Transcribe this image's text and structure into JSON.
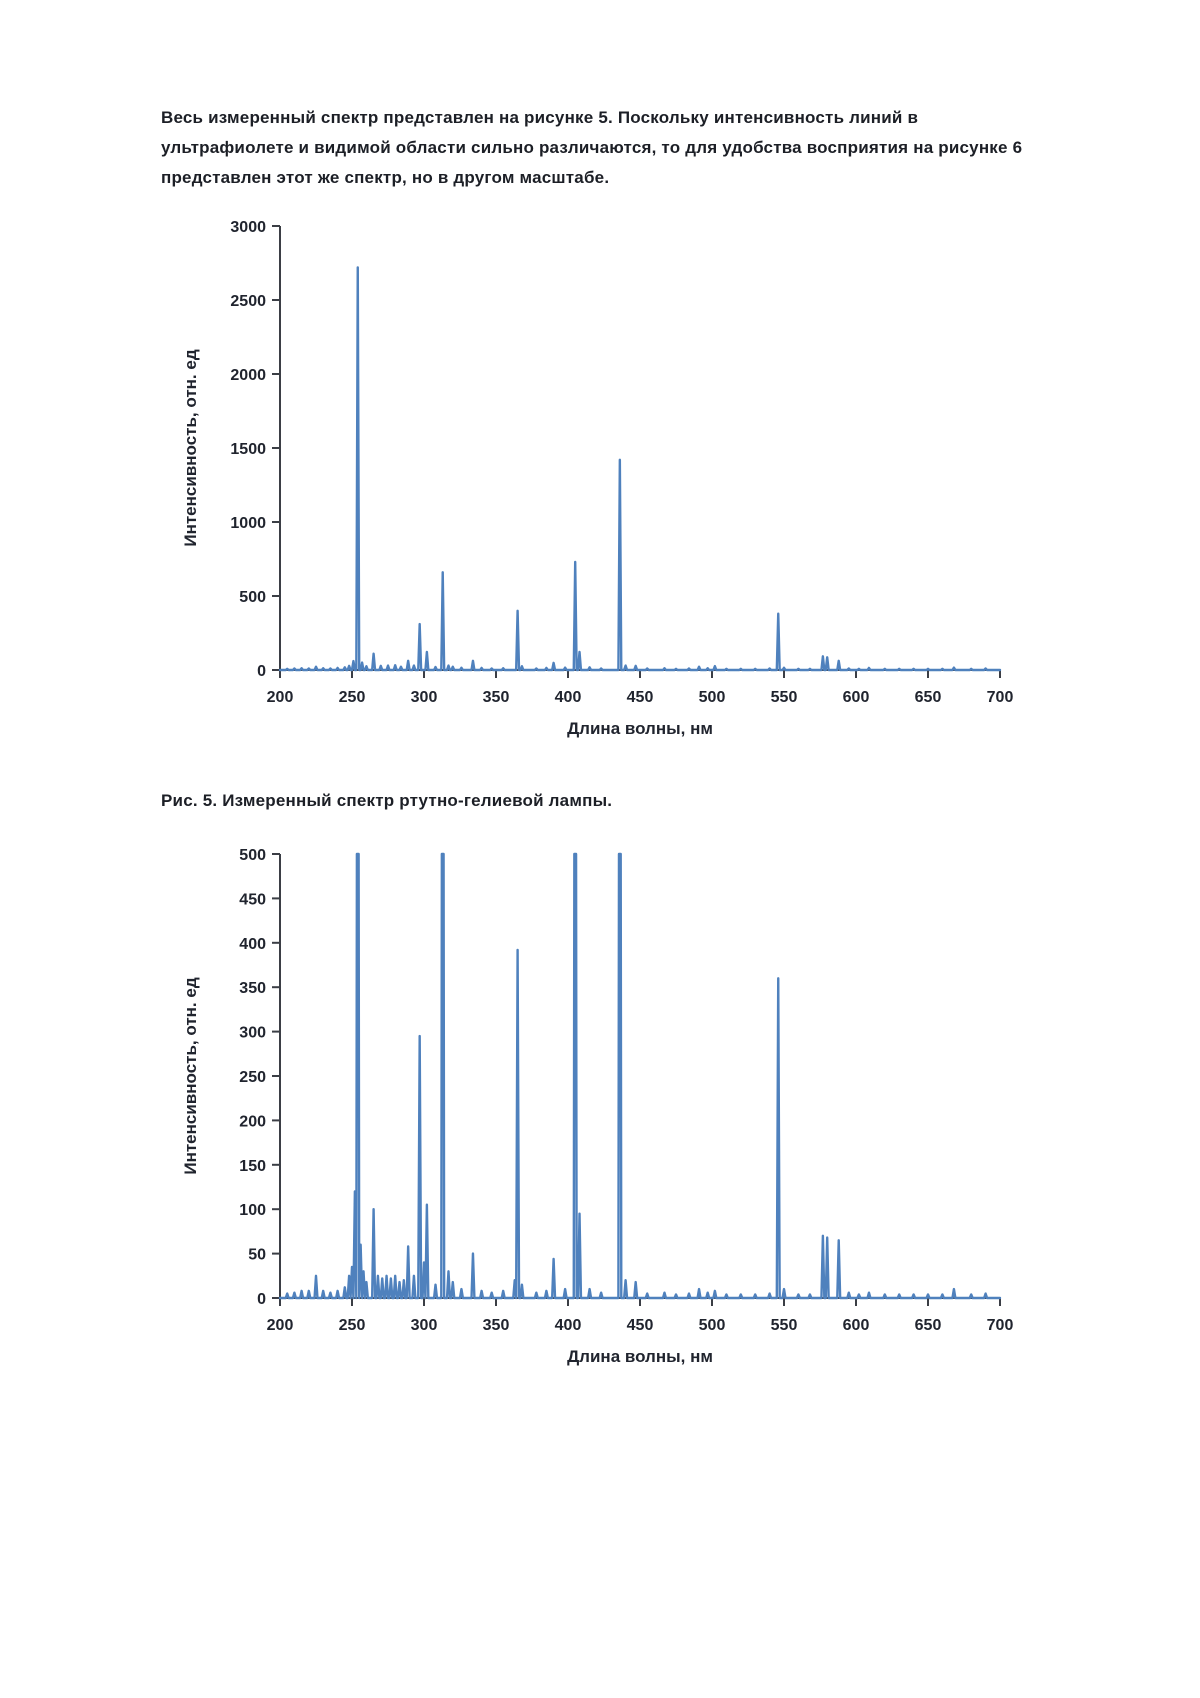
{
  "page": {
    "paragraph_lines": [
      "Весь измеренный спектр представлен на рисунке 5. Поскольку интенсивность линий в",
      "ультрафиолете и видимой области сильно различаются, то для удобства восприятия на рисунке 6",
      "представлен этот же спектр, но в другом масштабе."
    ],
    "figure5_caption": "Рис. 5. Измеренный спектр ртутно-гелиевой лампы."
  },
  "chart_data": [
    {
      "type": "line",
      "name": "spectrum-chart-full-scale",
      "title": "",
      "xlabel": "Длина волны, нм",
      "ylabel": "Интенсивность, отн. ед",
      "xlim": [
        200,
        700
      ],
      "ylim": [
        0,
        3000
      ],
      "xticks": [
        200,
        250,
        300,
        350,
        400,
        450,
        500,
        550,
        600,
        650,
        700
      ],
      "yticks": [
        0,
        500,
        1000,
        1500,
        2000,
        2500,
        3000
      ],
      "grid": false,
      "legend": "none",
      "line_color": "#4f81bd",
      "peaks": [
        [
          205,
          8
        ],
        [
          210,
          10
        ],
        [
          215,
          12
        ],
        [
          220,
          10
        ],
        [
          225,
          22
        ],
        [
          230,
          12
        ],
        [
          235,
          10
        ],
        [
          240,
          14
        ],
        [
          245,
          18
        ],
        [
          248,
          28
        ],
        [
          251,
          60
        ],
        [
          254,
          2720
        ],
        [
          257,
          50
        ],
        [
          260,
          25
        ],
        [
          265,
          110
        ],
        [
          270,
          28
        ],
        [
          275,
          30
        ],
        [
          280,
          32
        ],
        [
          284,
          22
        ],
        [
          289,
          62
        ],
        [
          293,
          30
        ],
        [
          297,
          310
        ],
        [
          302,
          122
        ],
        [
          308,
          20
        ],
        [
          313,
          660
        ],
        [
          317,
          30
        ],
        [
          320,
          22
        ],
        [
          326,
          15
        ],
        [
          334,
          62
        ],
        [
          340,
          14
        ],
        [
          347,
          10
        ],
        [
          355,
          12
        ],
        [
          365,
          400
        ],
        [
          368,
          25
        ],
        [
          378,
          10
        ],
        [
          385,
          14
        ],
        [
          390,
          48
        ],
        [
          398,
          16
        ],
        [
          405,
          730
        ],
        [
          408,
          122
        ],
        [
          415,
          18
        ],
        [
          423,
          10
        ],
        [
          436,
          1420
        ],
        [
          440,
          30
        ],
        [
          447,
          28
        ],
        [
          455,
          10
        ],
        [
          467,
          12
        ],
        [
          475,
          8
        ],
        [
          484,
          10
        ],
        [
          491,
          22
        ],
        [
          497,
          12
        ],
        [
          502,
          26
        ],
        [
          510,
          8
        ],
        [
          520,
          8
        ],
        [
          530,
          8
        ],
        [
          540,
          10
        ],
        [
          546,
          380
        ],
        [
          550,
          15
        ],
        [
          560,
          8
        ],
        [
          568,
          8
        ],
        [
          577,
          92
        ],
        [
          580,
          86
        ],
        [
          588,
          62
        ],
        [
          595,
          10
        ],
        [
          602,
          8
        ],
        [
          609,
          14
        ],
        [
          620,
          8
        ],
        [
          630,
          8
        ],
        [
          640,
          8
        ],
        [
          650,
          8
        ],
        [
          660,
          8
        ],
        [
          668,
          16
        ],
        [
          680,
          8
        ],
        [
          690,
          10
        ]
      ]
    },
    {
      "type": "line",
      "name": "spectrum-chart-zoomed-scale",
      "title": "",
      "xlabel": "Длина волны, нм",
      "ylabel": "Интенсивность, отн. ед",
      "xlim": [
        200,
        700
      ],
      "ylim": [
        0,
        500
      ],
      "xticks": [
        200,
        250,
        300,
        350,
        400,
        450,
        500,
        550,
        600,
        650,
        700
      ],
      "yticks": [
        0,
        50,
        100,
        150,
        200,
        250,
        300,
        350,
        400,
        450,
        500
      ],
      "grid": false,
      "legend": "none",
      "line_color": "#4f81bd",
      "peaks": [
        [
          205,
          5
        ],
        [
          210,
          6
        ],
        [
          215,
          8
        ],
        [
          220,
          8
        ],
        [
          225,
          25
        ],
        [
          230,
          8
        ],
        [
          235,
          6
        ],
        [
          240,
          8
        ],
        [
          245,
          12
        ],
        [
          248,
          25
        ],
        [
          250,
          35
        ],
        [
          252,
          120
        ],
        [
          254,
          500
        ],
        [
          256,
          60
        ],
        [
          258,
          30
        ],
        [
          260,
          18
        ],
        [
          265,
          100
        ],
        [
          268,
          25
        ],
        [
          271,
          22
        ],
        [
          274,
          25
        ],
        [
          277,
          22
        ],
        [
          280,
          25
        ],
        [
          283,
          18
        ],
        [
          286,
          20
        ],
        [
          289,
          58
        ],
        [
          293,
          25
        ],
        [
          297,
          295
        ],
        [
          300,
          40
        ],
        [
          302,
          105
        ],
        [
          308,
          15
        ],
        [
          313,
          500
        ],
        [
          317,
          30
        ],
        [
          320,
          18
        ],
        [
          326,
          10
        ],
        [
          334,
          50
        ],
        [
          340,
          8
        ],
        [
          347,
          6
        ],
        [
          355,
          8
        ],
        [
          363,
          20
        ],
        [
          365,
          392
        ],
        [
          368,
          15
        ],
        [
          378,
          6
        ],
        [
          385,
          8
        ],
        [
          390,
          44
        ],
        [
          398,
          10
        ],
        [
          405,
          500
        ],
        [
          408,
          95
        ],
        [
          415,
          10
        ],
        [
          423,
          6
        ],
        [
          436,
          500
        ],
        [
          440,
          20
        ],
        [
          447,
          18
        ],
        [
          455,
          5
        ],
        [
          467,
          6
        ],
        [
          475,
          4
        ],
        [
          484,
          5
        ],
        [
          491,
          10
        ],
        [
          497,
          6
        ],
        [
          502,
          8
        ],
        [
          510,
          4
        ],
        [
          520,
          4
        ],
        [
          530,
          4
        ],
        [
          540,
          5
        ],
        [
          546,
          360
        ],
        [
          550,
          10
        ],
        [
          560,
          4
        ],
        [
          568,
          4
        ],
        [
          577,
          70
        ],
        [
          580,
          68
        ],
        [
          588,
          65
        ],
        [
          595,
          6
        ],
        [
          602,
          4
        ],
        [
          609,
          6
        ],
        [
          620,
          4
        ],
        [
          630,
          4
        ],
        [
          640,
          4
        ],
        [
          650,
          4
        ],
        [
          660,
          4
        ],
        [
          668,
          10
        ],
        [
          680,
          4
        ],
        [
          690,
          5
        ]
      ]
    }
  ]
}
